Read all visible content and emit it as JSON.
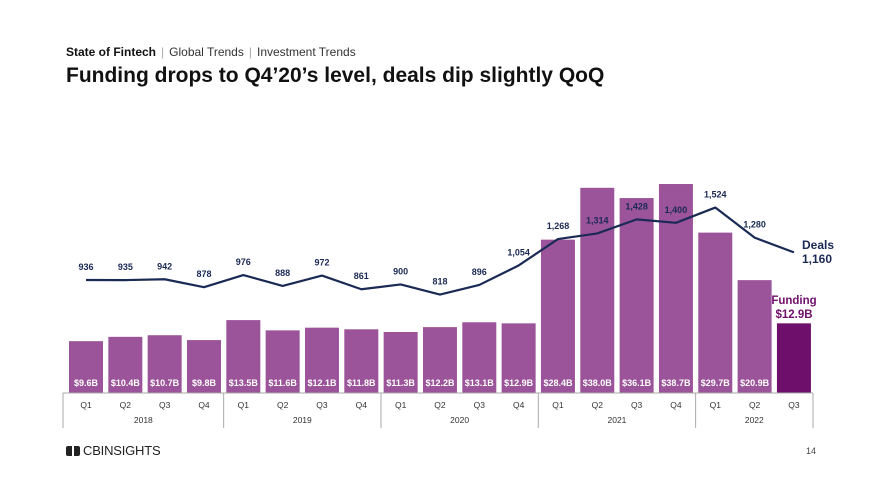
{
  "header": {
    "crumbs": [
      "State of Fintech",
      "Global Trends",
      "Investment Trends"
    ],
    "title": "Funding drops to Q4’20’s level, deals dip slightly QoQ"
  },
  "footer": {
    "logo": "CBINSIGHTS",
    "page_number": "14"
  },
  "chart_data": {
    "type": "bar+line",
    "categories": [
      "Q1",
      "Q2",
      "Q3",
      "Q4",
      "Q1",
      "Q2",
      "Q3",
      "Q4",
      "Q1",
      "Q2",
      "Q3",
      "Q4",
      "Q1",
      "Q2",
      "Q3",
      "Q4",
      "Q1",
      "Q2",
      "Q3"
    ],
    "years": [
      {
        "label": "2018",
        "quarters": 4
      },
      {
        "label": "2019",
        "quarters": 4
      },
      {
        "label": "2020",
        "quarters": 4
      },
      {
        "label": "2021",
        "quarters": 4
      },
      {
        "label": "2022",
        "quarters": 3
      }
    ],
    "series": [
      {
        "name": "Funding",
        "type": "bar",
        "unit": "$B",
        "values": [
          9.6,
          10.4,
          10.7,
          9.8,
          13.5,
          11.6,
          12.1,
          11.8,
          11.3,
          12.2,
          13.1,
          12.9,
          28.4,
          38.0,
          36.1,
          38.7,
          29.7,
          20.9,
          12.9
        ],
        "labels": [
          "$9.6B",
          "$10.4B",
          "$10.7B",
          "$9.8B",
          "$13.5B",
          "$11.6B",
          "$12.1B",
          "$11.8B",
          "$11.3B",
          "$12.2B",
          "$13.1B",
          "$12.9B",
          "$28.4B",
          "$38.0B",
          "$36.1B",
          "$38.7B",
          "$29.7B",
          "$20.9B",
          ""
        ],
        "color": "#9b5499",
        "highlight_color": "#6e0f6c"
      },
      {
        "name": "Deals",
        "type": "line",
        "values": [
          936,
          935,
          942,
          878,
          976,
          888,
          972,
          861,
          900,
          818,
          896,
          1054,
          1268,
          1314,
          1428,
          1400,
          1524,
          1280,
          1160
        ],
        "labels": [
          "936",
          "935",
          "942",
          "878",
          "976",
          "888",
          "972",
          "861",
          "900",
          "818",
          "896",
          "1,054",
          "1,268",
          "1,314",
          "1,428",
          "1,400",
          "1,524",
          "1,280",
          ""
        ],
        "color": "#1b2a55"
      }
    ],
    "annotations": {
      "deals_label": "Deals",
      "deals_value": "1,160",
      "funding_label": "Funding",
      "funding_value": "$12.9B"
    }
  }
}
